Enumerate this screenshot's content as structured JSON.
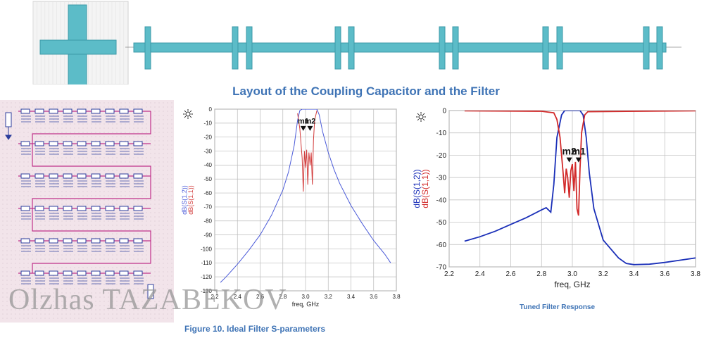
{
  "layout": {
    "title": "Layout of the Coupling Capacitor and the Filter",
    "colors": {
      "trace": "#5cbcc8",
      "trace_edge": "#3c9aa8",
      "grid_bg": "#f4f4f4"
    }
  },
  "schematic": {
    "colors": {
      "background": "#f2e4ea",
      "wire": "#c0308a",
      "component": "#2c3e9c"
    }
  },
  "watermark": "Olzhas TAZABEKOV",
  "figure_caption": "Figure 10. Ideal Filter S-parameters",
  "tuned_caption": "Tuned Filter Response",
  "chart_data": [
    {
      "type": "line",
      "xlabel": "freq, GHz",
      "ylabel_series": [
        "dB(S(1,2))",
        "dB(S(1,1))"
      ],
      "xlim": [
        2.2,
        3.8
      ],
      "ylim": [
        -130,
        0
      ],
      "xticks": [
        "2.2",
        "2.4",
        "2.6",
        "2.8",
        "3.0",
        "3.2",
        "3.4",
        "3.6",
        "3.8"
      ],
      "yticks": [
        "0",
        "-10",
        "-20",
        "-30",
        "-40",
        "-50",
        "-60",
        "-70",
        "-80",
        "-90",
        "-100",
        "-110",
        "-120",
        "-130"
      ],
      "markers": [
        "m1",
        "m2"
      ],
      "series": [
        {
          "name": "dB(S(1,2))",
          "color": "#4a5ad8",
          "x": [
            2.25,
            2.3,
            2.4,
            2.5,
            2.6,
            2.7,
            2.8,
            2.85,
            2.9,
            2.93,
            2.95,
            2.97,
            3.1,
            3.12,
            3.15,
            3.2,
            3.25,
            3.3,
            3.4,
            3.5,
            3.6,
            3.7,
            3.75
          ],
          "y": [
            -124,
            -120,
            -111,
            -101,
            -90,
            -76,
            -58,
            -45,
            -26,
            -8,
            -1,
            0,
            0,
            -4,
            -16,
            -31,
            -43,
            -53,
            -69,
            -82,
            -94,
            -104,
            -110
          ]
        },
        {
          "name": "dB(S(1,1))",
          "color": "#d23c3c",
          "x": [
            2.93,
            2.95,
            2.97,
            2.98,
            2.99,
            3.0,
            3.01,
            3.02,
            3.03,
            3.04,
            3.05,
            3.06,
            3.07,
            3.08,
            3.1
          ],
          "y": [
            -3,
            -14,
            -35,
            -59,
            -30,
            -42,
            -29,
            -54,
            -31,
            -40,
            -31,
            -54,
            -22,
            -8,
            -1
          ]
        }
      ]
    },
    {
      "type": "line",
      "xlabel": "freq, GHz",
      "ylabel_series": [
        "dB(S(1,2))",
        "dB(S(1,1))"
      ],
      "xlim": [
        2.2,
        3.8
      ],
      "ylim": [
        -70,
        0
      ],
      "xticks": [
        "2.2",
        "2.4",
        "2.6",
        "2.8",
        "3.0",
        "3.2",
        "3.4",
        "3.6",
        "3.8"
      ],
      "yticks": [
        "0",
        "-10",
        "-20",
        "-30",
        "-40",
        "-50",
        "-60",
        "-70"
      ],
      "markers": [
        "m2",
        "m1"
      ],
      "series": [
        {
          "name": "dB(S(1,2))",
          "color": "#1a2fb8",
          "x": [
            2.3,
            2.4,
            2.5,
            2.6,
            2.7,
            2.8,
            2.83,
            2.86,
            2.88,
            2.9,
            2.93,
            2.95,
            3.05,
            3.07,
            3.09,
            3.11,
            3.14,
            3.2,
            3.3,
            3.35,
            3.4,
            3.5,
            3.6,
            3.7,
            3.8
          ],
          "y": [
            -58.5,
            -56.5,
            -54,
            -51,
            -48,
            -44.5,
            -43.5,
            -45.5,
            -33,
            -12,
            -2,
            0,
            0,
            -2,
            -12,
            -28,
            -44,
            -58,
            -66,
            -68.5,
            -69,
            -68.8,
            -68,
            -67,
            -66
          ]
        },
        {
          "name": "dB(S(1,1))",
          "color": "#d22a2a",
          "x": [
            2.3,
            2.8,
            2.88,
            2.9,
            2.92,
            2.94,
            2.95,
            2.96,
            2.97,
            2.98,
            2.99,
            3.0,
            3.01,
            3.02,
            3.03,
            3.04,
            3.05,
            3.06,
            3.08,
            3.1,
            3.8
          ],
          "y": [
            -0.1,
            -0.3,
            -1,
            -4,
            -12,
            -28,
            -37,
            -26,
            -30,
            -39,
            -27,
            -24,
            -36,
            -23,
            -44,
            -47,
            -26,
            -10,
            -2,
            -0.5,
            -0.1
          ]
        }
      ]
    }
  ]
}
